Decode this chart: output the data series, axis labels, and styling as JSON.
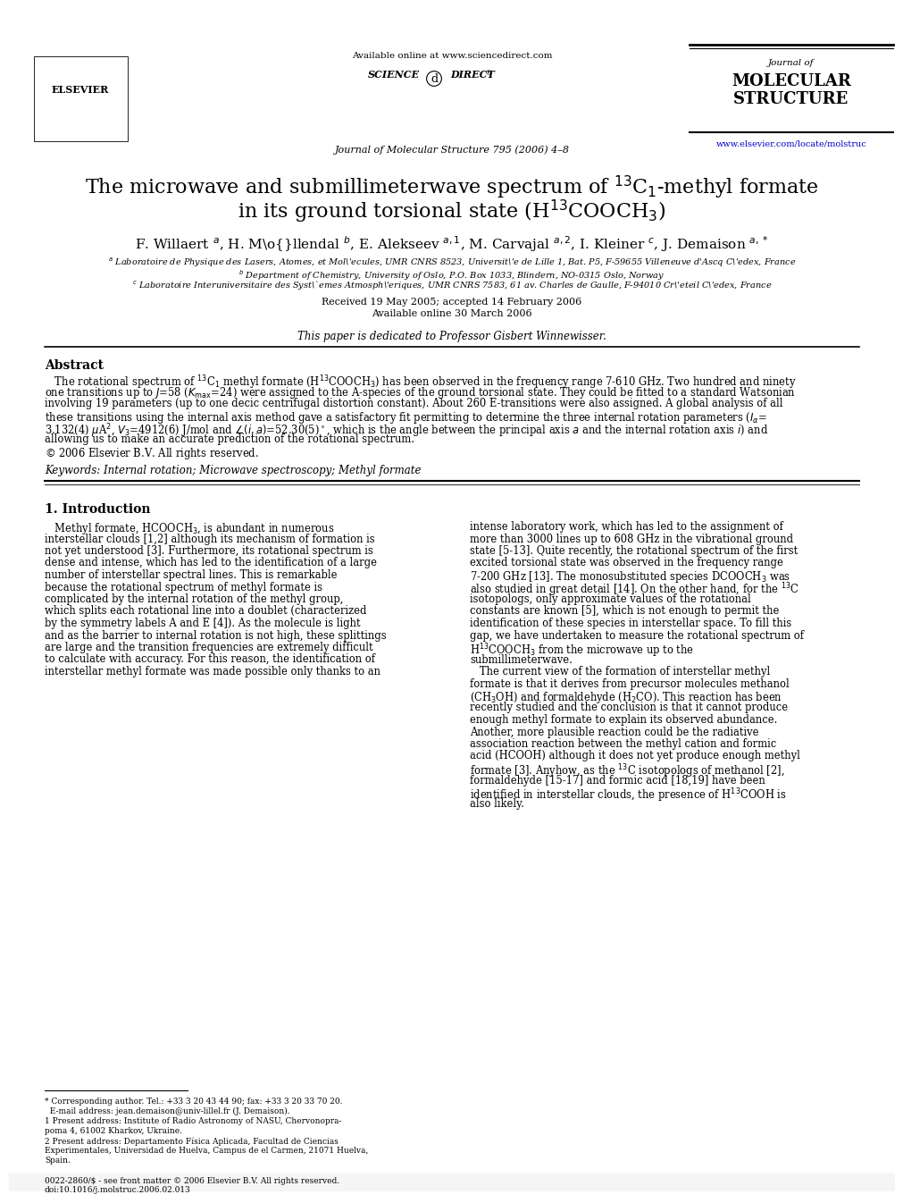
{
  "bg_color": "#ffffff",
  "header": {
    "available_online": "Available online at www.sciencedirect.com",
    "journal_line": "Journal of Molecular Structure 795 (2006) 4–8",
    "journal_name_line1": "Journal of",
    "journal_name_line2": "MOLECULAR",
    "journal_name_line3": "STRUCTURE",
    "url": "www.elsevier.com/locate/molstruc"
  },
  "dedication": "This paper is dedicated to Professor Gisbert Winnewisser.",
  "abstract_title": "Abstract",
  "keywords": "Keywords: Internal rotation; Microwave spectroscopy; Methyl formate",
  "intro_title": "1. Introduction",
  "footnote1": "* Corresponding author. Tel.: +33 3 20 43 44 90; fax: +33 3 20 33 70 20.",
  "footnote2": "  E-mail address: jean.demaison@univ-lillel.fr (J. Demaison).",
  "footnote3a": "1 Present address: Institute of Radio Astronomy of NASU, Chervonopra-",
  "footnote3b": "poma 4, 61002 Kharkov, Ukraine.",
  "footnote4a": "2 Present address: Departamento Física Aplicada, Facultad de Ciencias",
  "footnote4b": "Experimentales, Universidad de Huelva, Campus de el Carmen, 21071 Huelva,",
  "footnote4c": "Spain.",
  "bottom_bar1": "0022-2860/$ - see front matter © 2006 Elsevier B.V. All rights reserved.",
  "bottom_bar2": "doi:10.1016/j.molstruc.2006.02.013"
}
